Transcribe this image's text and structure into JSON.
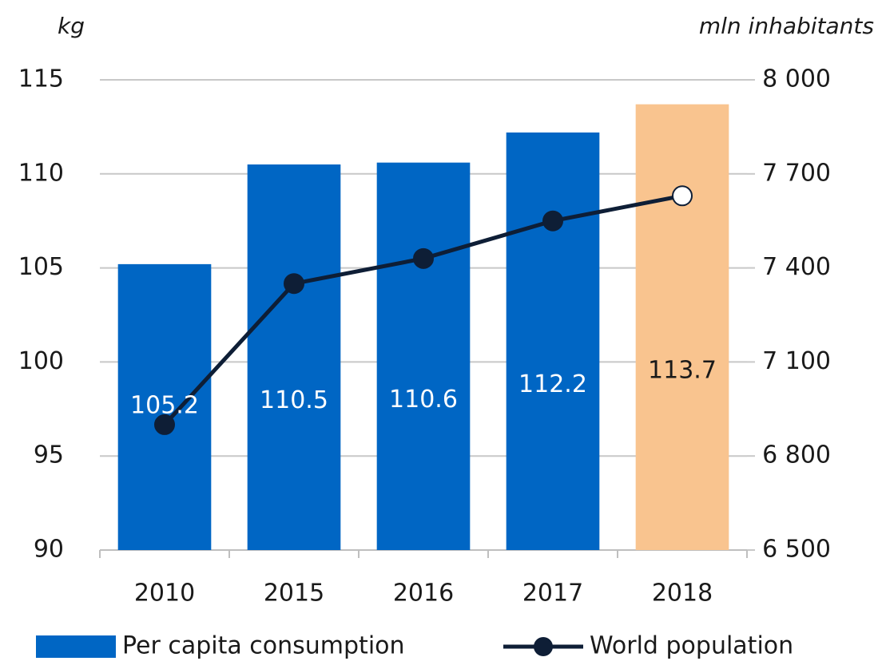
{
  "chart_data": {
    "type": "bar_line",
    "y_label": "kg",
    "y2_label": "mln inhabitants",
    "categories": [
      "2010",
      "2015",
      "2016",
      "2017",
      "2018"
    ],
    "ylim": [
      90,
      115
    ],
    "yticks": [
      90,
      95,
      100,
      105,
      110,
      115
    ],
    "y2lim": [
      6500,
      8000
    ],
    "y2ticks": [
      {
        "value": 6500,
        "label": "6 500"
      },
      {
        "value": 6800,
        "label": "6 800"
      },
      {
        "value": 7100,
        "label": "7 100"
      },
      {
        "value": 7400,
        "label": "7 400"
      },
      {
        "value": 7700,
        "label": "7 700"
      },
      {
        "value": 8000,
        "label": "8 000"
      }
    ],
    "grid": true,
    "legend": "bottom",
    "series": [
      {
        "name": "Per capita consumption",
        "type": "bar",
        "color": "#0066c4",
        "bar_colors": [
          "#0066c4",
          "#0066c4",
          "#0066c4",
          "#0066c4",
          "#f9c48f"
        ],
        "values": [
          105.2,
          110.5,
          110.6,
          112.2,
          113.7
        ]
      },
      {
        "name": "World population",
        "type": "line",
        "axis": "y2",
        "color": "#0e1e36",
        "open_markers": [
          false,
          false,
          false,
          false,
          true
        ],
        "values": [
          6900,
          7350,
          7430,
          7550,
          7630
        ]
      }
    ]
  }
}
